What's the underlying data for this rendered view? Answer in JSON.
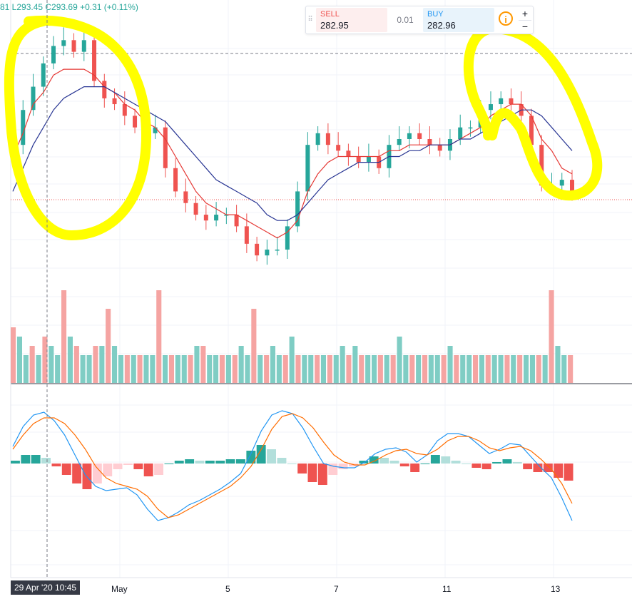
{
  "header": {
    "ohlc_text": "81  L293.45  C293.69  +0.31 (+0.11%)"
  },
  "trade_panel": {
    "sell_label": "SELL",
    "sell_price": "282.95",
    "spread": "0.01",
    "buy_label": "BUY",
    "buy_price": "282.96",
    "info_icon": "i",
    "plus": "+",
    "minus": "−"
  },
  "x_axis": {
    "crosshair_label": "29 Apr '20   10:45",
    "ticks": [
      "May",
      "5",
      "7",
      "11",
      "13"
    ]
  },
  "colors": {
    "up": "#26a69a",
    "down": "#ef5350",
    "ema_fast": "#e53935",
    "ema_slow": "#283593",
    "macd": "#2196f3",
    "signal": "#ff6d00",
    "highlight": "#ffff00",
    "price_line": "#ef5350"
  },
  "chart_data": [
    {
      "type": "candlestick",
      "panel": "price",
      "title": "",
      "x_ticks": [
        "29 Apr '20",
        "May",
        "5",
        "7",
        "11",
        "13"
      ],
      "close_series": [
        276,
        282,
        286,
        290,
        293,
        294,
        292,
        294,
        287,
        284,
        283,
        281,
        279,
        278,
        279,
        272,
        268,
        266,
        264,
        263,
        264,
        264,
        262,
        259,
        257,
        258,
        258,
        262,
        268,
        276,
        278,
        276,
        275,
        274,
        273,
        274,
        272,
        276,
        277,
        278,
        277,
        276,
        275,
        277,
        279,
        279,
        282,
        283,
        284,
        283,
        281,
        276,
        269,
        269,
        270,
        268
      ],
      "ema_fast": [
        274,
        278,
        283,
        285,
        288,
        289,
        289,
        289,
        288,
        286,
        285,
        283,
        282,
        280,
        279,
        277,
        274,
        271,
        268,
        266,
        265,
        264,
        264,
        263,
        262,
        261,
        260,
        261,
        263,
        268,
        271,
        273,
        274,
        274,
        274,
        274,
        274,
        275,
        275,
        276,
        276,
        276,
        276,
        276,
        277,
        278,
        279,
        281,
        282,
        283,
        283,
        281,
        277,
        275,
        272,
        271
      ],
      "ema_slow": [
        268,
        272,
        276,
        279,
        282,
        284,
        285,
        286,
        286,
        286,
        285,
        284,
        283,
        282,
        281,
        280,
        278,
        276,
        274,
        272,
        270,
        269,
        268,
        267,
        266,
        264,
        263,
        263,
        264,
        266,
        268,
        270,
        271,
        272,
        273,
        273,
        273,
        274,
        274,
        275,
        275,
        276,
        276,
        276,
        277,
        277,
        278,
        279,
        280,
        281,
        282,
        282,
        281,
        279,
        277,
        275
      ],
      "highlighted_regions": [
        "late Apr – May 1 peak and drop",
        "May 12–13 sell-off"
      ]
    },
    {
      "type": "bar",
      "panel": "volume",
      "values": [
        6,
        5,
        3,
        4,
        3,
        5,
        4,
        3,
        10,
        5,
        4,
        3,
        3,
        4,
        4,
        8,
        4,
        3,
        3,
        3,
        3,
        3,
        3,
        10,
        3,
        3,
        3,
        3,
        3,
        4,
        4,
        3,
        3,
        3,
        3,
        3,
        4,
        3,
        8,
        3,
        3,
        4,
        3,
        3,
        5,
        3,
        3,
        3,
        3,
        3,
        3,
        3,
        4,
        3,
        4,
        3,
        3,
        3,
        3,
        3,
        3,
        5,
        3,
        3,
        3,
        3,
        3,
        3,
        3,
        4,
        3,
        3,
        3,
        3,
        3,
        3,
        3,
        3,
        3,
        3,
        3,
        3,
        3,
        3,
        3,
        10,
        4,
        3,
        3
      ]
    },
    {
      "type": "line",
      "panel": "macd",
      "macd": [
        1.2,
        2.6,
        3.4,
        3.6,
        3.0,
        2.0,
        0.6,
        -0.8,
        -1.6,
        -1.9,
        -1.8,
        -1.7,
        -2.2,
        -3.2,
        -4.0,
        -3.8,
        -3.4,
        -2.9,
        -2.6,
        -2.2,
        -1.8,
        -1.3,
        -0.7,
        0.7,
        2.3,
        3.4,
        3.7,
        3.5,
        2.5,
        1.2,
        0.0,
        -0.2,
        -0.3,
        -0.3,
        0.1,
        0.7,
        1.0,
        1.1,
        0.8,
        0.1,
        0.6,
        1.6,
        2.1,
        2.1,
        1.9,
        1.3,
        0.7,
        1.0,
        1.4,
        1.3,
        0.5,
        -0.3,
        -1.0,
        -2.4,
        -4.0
      ],
      "signal": [
        1.0,
        2.0,
        2.8,
        3.2,
        3.2,
        2.8,
        2.0,
        1.0,
        -0.2,
        -1.0,
        -1.4,
        -1.6,
        -1.8,
        -2.3,
        -3.2,
        -3.8,
        -3.6,
        -3.2,
        -2.8,
        -2.4,
        -2.0,
        -1.6,
        -1.0,
        -0.2,
        1.0,
        2.4,
        3.3,
        3.5,
        3.2,
        2.5,
        1.5,
        0.6,
        0.1,
        -0.1,
        -0.1,
        0.2,
        0.6,
        0.9,
        1.0,
        0.7,
        0.6,
        1.0,
        1.6,
        1.9,
        1.9,
        1.6,
        1.1,
        0.9,
        1.1,
        1.2,
        0.9,
        0.3,
        -0.4,
        -1.4,
        -2.8
      ],
      "histogram": [
        0.2,
        0.6,
        0.6,
        0.4,
        -0.2,
        -0.8,
        -1.4,
        -1.8,
        -1.4,
        -0.9,
        -0.4,
        -0.1,
        -0.4,
        -0.9,
        -0.8,
        0.0,
        0.2,
        0.3,
        0.2,
        0.2,
        0.2,
        0.3,
        0.3,
        0.9,
        1.3,
        1.0,
        0.4,
        0.0,
        -0.7,
        -1.3,
        -1.5,
        -0.8,
        -0.4,
        -0.2,
        0.2,
        0.5,
        0.4,
        0.2,
        -0.2,
        -0.6,
        0.0,
        0.6,
        0.5,
        0.2,
        0.0,
        -0.3,
        -0.4,
        0.1,
        0.3,
        0.1,
        -0.4,
        -0.6,
        -0.6,
        -1.0,
        -1.2
      ]
    }
  ]
}
